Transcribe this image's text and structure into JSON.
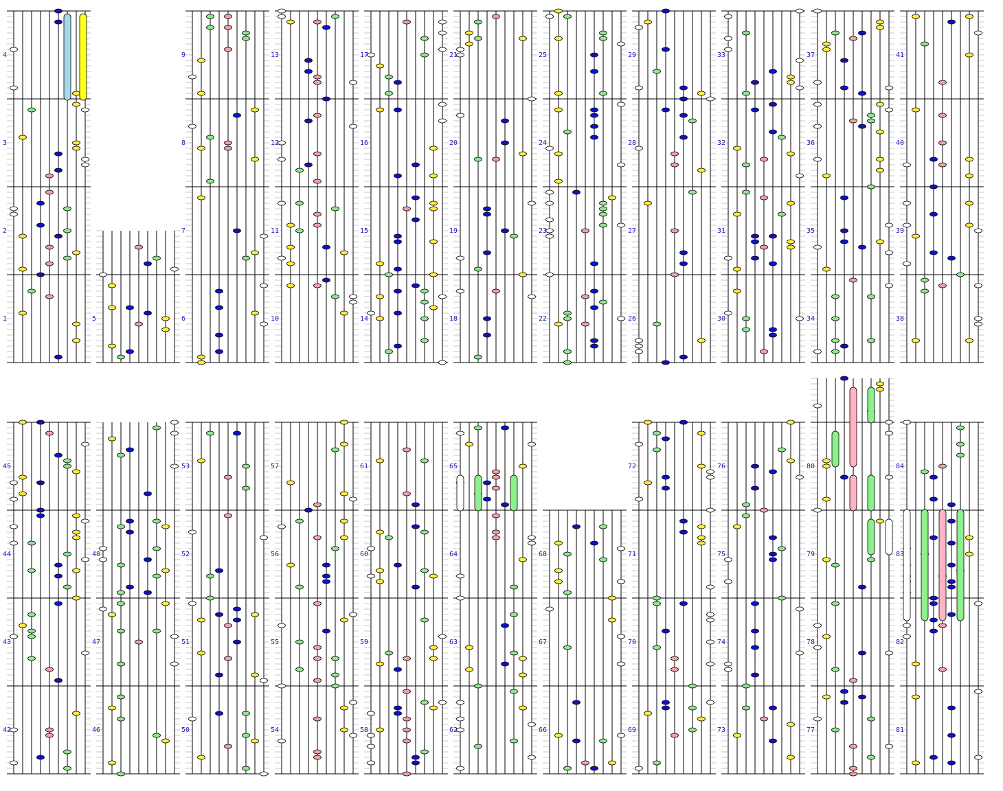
{
  "chart_type": "rhythm-game note chart",
  "background_color": "#ffffff",
  "line_color": "#000000",
  "minor_line_color": "#c8c8c8",
  "label_color": "#1a1ab8",
  "lane_colors": {
    "white": "#ffffff",
    "yellow": "#ffef3a",
    "green": "#8fe88f",
    "blue": "#1010c8",
    "pink": "#f2a0a8",
    "cyan": "#a8d8e8",
    "hold_yellow": "#ffff20",
    "hold_green": "#8cf08c",
    "hold_pink": "#ffb4c4",
    "hold_white": "#ffffff"
  },
  "lane_order": [
    "white",
    "yellow",
    "green",
    "blue",
    "pink",
    "blue",
    "green",
    "yellow",
    "white"
  ],
  "measure_labels_row1": [
    "4",
    "3",
    "2",
    "1",
    "5",
    "9",
    "8",
    "7",
    "6",
    "13",
    "12",
    "11",
    "10",
    "17",
    "16",
    "15",
    "14",
    "21",
    "20",
    "19",
    "18",
    "25",
    "24",
    "23",
    "22",
    "29",
    "28",
    "27",
    "26",
    "33",
    "32",
    "31",
    "30",
    "37",
    "36",
    "35",
    "34",
    "41",
    "40",
    "39",
    "38"
  ],
  "measure_labels_row2": [
    "45",
    "44",
    "43",
    "42",
    "48",
    "47",
    "46",
    "53",
    "52",
    "51",
    "50",
    "57",
    "56",
    "55",
    "54",
    "61",
    "60",
    "59",
    "58",
    "65",
    "64",
    "63",
    "62",
    "68",
    "67",
    "66",
    "72",
    "71",
    "70",
    "69",
    "76",
    "75",
    "74",
    "73",
    "80",
    "79",
    "78",
    "77",
    "84",
    "83",
    "82",
    "81"
  ]
}
